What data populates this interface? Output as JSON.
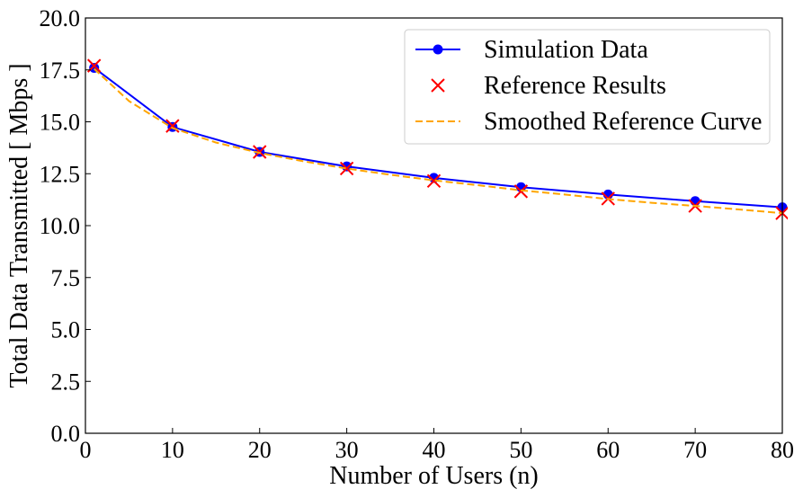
{
  "chart_data": {
    "type": "line",
    "xlabel": "Number of Users (n)",
    "ylabel": "Total Data Transmitted [ Mbps ]",
    "xlim": [
      0,
      80
    ],
    "ylim": [
      0,
      20
    ],
    "xticks": [
      0,
      10,
      20,
      30,
      40,
      50,
      60,
      70,
      80
    ],
    "xtick_labels": [
      "0",
      "10",
      "20",
      "30",
      "40",
      "50",
      "60",
      "70",
      "80"
    ],
    "yticks": [
      0,
      2.5,
      5,
      7.5,
      10,
      12.5,
      15,
      17.5,
      20
    ],
    "ytick_labels": [
      "0.0",
      "2.5",
      "5.0",
      "7.5",
      "10.0",
      "12.5",
      "15.0",
      "17.5",
      "20.0"
    ],
    "grid": false,
    "legend_position": "top-right",
    "series": [
      {
        "name": "Simulation Data",
        "style": "line-marker-circle",
        "color": "#0000ff",
        "x": [
          1,
          10,
          20,
          30,
          40,
          50,
          60,
          70,
          80
        ],
        "y": [
          17.6,
          14.75,
          13.55,
          12.85,
          12.3,
          11.85,
          11.5,
          11.18,
          10.88
        ]
      },
      {
        "name": "Reference Results",
        "style": "marker-x",
        "color": "#ff0000",
        "x": [
          1,
          10,
          20,
          30,
          40,
          50,
          60,
          70,
          80
        ],
        "y": [
          17.7,
          14.8,
          13.55,
          12.75,
          12.15,
          11.65,
          11.3,
          10.95,
          10.6
        ]
      },
      {
        "name": "Smoothed Reference Curve",
        "style": "dashed-line",
        "color": "#ffa500",
        "x": [
          1,
          5,
          10,
          15,
          20,
          25,
          30,
          35,
          40,
          45,
          50,
          55,
          60,
          65,
          70,
          75,
          80
        ],
        "y": [
          17.55,
          16.0,
          14.7,
          14.0,
          13.5,
          13.1,
          12.75,
          12.45,
          12.18,
          11.95,
          11.7,
          11.5,
          11.28,
          11.1,
          10.95,
          10.78,
          10.6
        ]
      }
    ]
  }
}
